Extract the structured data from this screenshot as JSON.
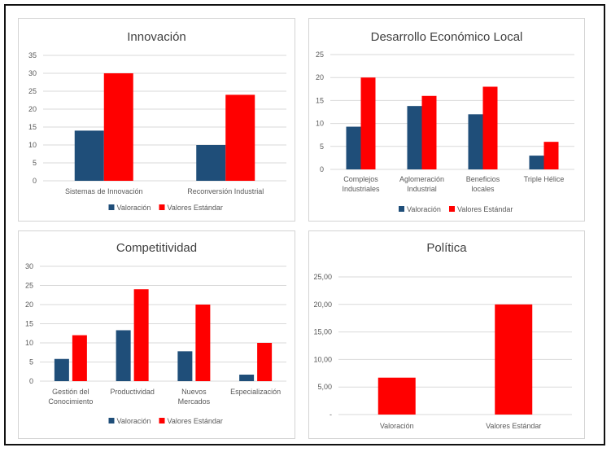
{
  "colors": {
    "valoracion": "#1F4E79",
    "estandar": "#FF0000",
    "grid": "#d9d9d9",
    "text": "#595959"
  },
  "legend": {
    "valoracion": "Valoración",
    "estandar": "Valores Estándar"
  },
  "chart_data": [
    {
      "type": "bar",
      "title": "Innovación",
      "categories": [
        "Sistemas de Innovación",
        "Reconversión Industrial"
      ],
      "series": [
        {
          "name": "Valoración",
          "values": [
            14,
            10
          ]
        },
        {
          "name": "Valores Estándar",
          "values": [
            30,
            24
          ]
        }
      ],
      "ylim": [
        0,
        35
      ],
      "yticks": [
        "0",
        "5",
        "10",
        "15",
        "20",
        "25",
        "30",
        "35"
      ],
      "grid": true,
      "legend": "bottom"
    },
    {
      "type": "bar",
      "title": "Desarrollo Económico Local",
      "categories": [
        "Complejos Industriales",
        "Aglomeración Industrial",
        "Beneficios locales",
        "Triple Hélice"
      ],
      "series": [
        {
          "name": "Valoración",
          "values": [
            9.3,
            13.8,
            12,
            3
          ]
        },
        {
          "name": "Valores Estándar",
          "values": [
            20,
            16,
            18,
            6
          ]
        }
      ],
      "ylim": [
        0,
        25
      ],
      "yticks": [
        "0",
        "5",
        "10",
        "15",
        "20",
        "25"
      ],
      "grid": true,
      "legend": "bottom"
    },
    {
      "type": "bar",
      "title": "Competitividad",
      "categories": [
        "Gestión del Conocimiento",
        "Productividad",
        "Nuevos Mercados",
        "Especialización"
      ],
      "series": [
        {
          "name": "Valoración",
          "values": [
            5.8,
            13.3,
            7.8,
            1.7
          ]
        },
        {
          "name": "Valores Estándar",
          "values": [
            12,
            24,
            20,
            10
          ]
        }
      ],
      "ylim": [
        0,
        30
      ],
      "yticks": [
        "0",
        "5",
        "10",
        "15",
        "20",
        "25",
        "30"
      ],
      "grid": true,
      "legend": "bottom"
    },
    {
      "type": "bar",
      "title": "Política",
      "categories": [
        "Valoración",
        "Valores Estándar"
      ],
      "values": [
        6.7,
        20
      ],
      "ylim": [
        0,
        25
      ],
      "yticks": [
        "-",
        "5,00",
        "10,00",
        "15,00",
        "20,00",
        "25,00"
      ],
      "grid": true,
      "legend": "none"
    }
  ]
}
